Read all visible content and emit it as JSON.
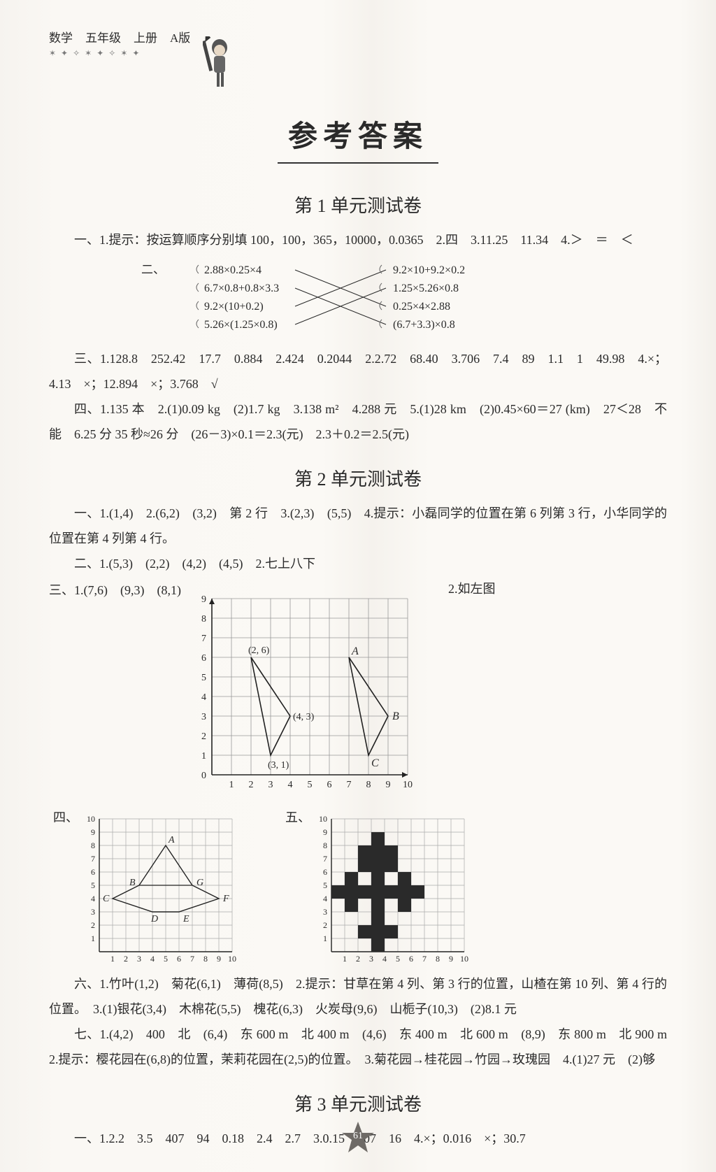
{
  "header": {
    "subject": "数学",
    "grade": "五年级",
    "volume": "上册",
    "version": "A版"
  },
  "main_title": "参考答案",
  "unit1": {
    "title": "第 1 单元测试卷",
    "text1": "一、1.提示：按运算顺序分别填 100，100，365，10000，0.0365　2.四　3.11.25　11.34　4.＞　＝　＜",
    "match_label": "二、",
    "match_left": [
      "2.88×0.25×4",
      "6.7×0.8+0.8×3.3",
      "9.2×(10+0.2)",
      "5.26×(1.25×0.8)"
    ],
    "match_right": [
      "9.2×10+9.2×0.2",
      "1.25×5.26×0.8",
      "0.25×4×2.88",
      "(6.7+3.3)×0.8"
    ],
    "text3": "三、1.128.8　252.42　17.7　0.884　2.424　0.2044　2.2.72　68.40　3.706　7.4　89　1.1　1　49.98　4.×；4.13　×；12.894　×；3.768　√",
    "text4": "四、1.135 本　2.(1)0.09 kg　(2)1.7 kg　3.138 m²　4.288 元　5.(1)28 km　(2)0.45×60＝27 (km)　27＜28　不能　6.25 分 35 秒≈26 分　(26－3)×0.1＝2.3(元)　2.3＋0.2＝2.5(元)"
  },
  "unit2": {
    "title": "第 2 单元测试卷",
    "text1": "一、1.(1,4)　2.(6,2)　(3,2)　第 2 行　3.(2,3)　(5,5)　4.提示：小磊同学的位置在第 6 列第 3 行，小华同学的位置在第 4 列第 4 行。",
    "text2": "二、1.(5,3)　(2,2)　(4,2)　(4,5)　2.七上八下",
    "san_label": "三、1.",
    "san_coords": "(7,6)　(9,3)　(8,1)",
    "grid_caption": "2.如左图",
    "grid_big": {
      "xticks": [
        1,
        2,
        3,
        4,
        5,
        6,
        7,
        8,
        9,
        10
      ],
      "yticks": [
        0,
        1,
        2,
        3,
        4,
        5,
        6,
        7,
        8,
        9
      ],
      "shape1_label_26": "(2, 6)",
      "shape1_label_43": "(4, 3)",
      "shape1_label_31": "(3, 1)",
      "labelA": "A",
      "labelB": "B",
      "labelC": "C"
    },
    "si_label": "四、",
    "wu_label": "五、",
    "grid_si": {
      "xticks": [
        1,
        2,
        3,
        4,
        5,
        6,
        7,
        8,
        9,
        10
      ],
      "yticks": [
        1,
        2,
        3,
        4,
        5,
        6,
        7,
        8,
        9,
        10
      ],
      "A": "A",
      "B": "B",
      "C": "C",
      "D": "D",
      "E": "E",
      "F": "F",
      "G": "G"
    },
    "grid_wu": {
      "xticks": [
        1,
        2,
        3,
        4,
        5,
        6,
        7,
        8,
        9,
        10
      ],
      "yticks": [
        1,
        2,
        3,
        4,
        5,
        6,
        7,
        8,
        9,
        10
      ]
    },
    "text6": "六、1.竹叶(1,2)　菊花(6,1)　薄荷(8,5)　2.提示：甘草在第 4 列、第 3 行的位置，山楂在第 10 列、第 4 行的位置。　3.(1)银花(3,4)　木棉花(5,5)　槐花(6,3)　火炭母(9,6)　山栀子(10,3)　(2)8.1 元",
    "text7": "七、1.(4,2)　400　北　(6,4)　东 600 m　北 400 m　(4,6)　东 400 m　北 600 m　(8,9)　东 800 m　北 900 m　2.提示：樱花园在(6,8)的位置，茉莉花园在(2,5)的位置。　3.菊花园→桂花园→竹园→玫瑰园　4.(1)27 元　(2)够"
  },
  "unit3": {
    "title": "第 3 单元测试卷",
    "text1": "一、1.2.2　3.5　407　94　0.18　2.4　2.7　3.0.15　207　16　4.×；0.016　×；30.7"
  },
  "page_number": "61",
  "colors": {
    "ink": "#2a2a2a",
    "grid": "#777",
    "grid_bold": "#222",
    "fill_black": "#2a2a2a",
    "bg": "#fbf9f5"
  }
}
